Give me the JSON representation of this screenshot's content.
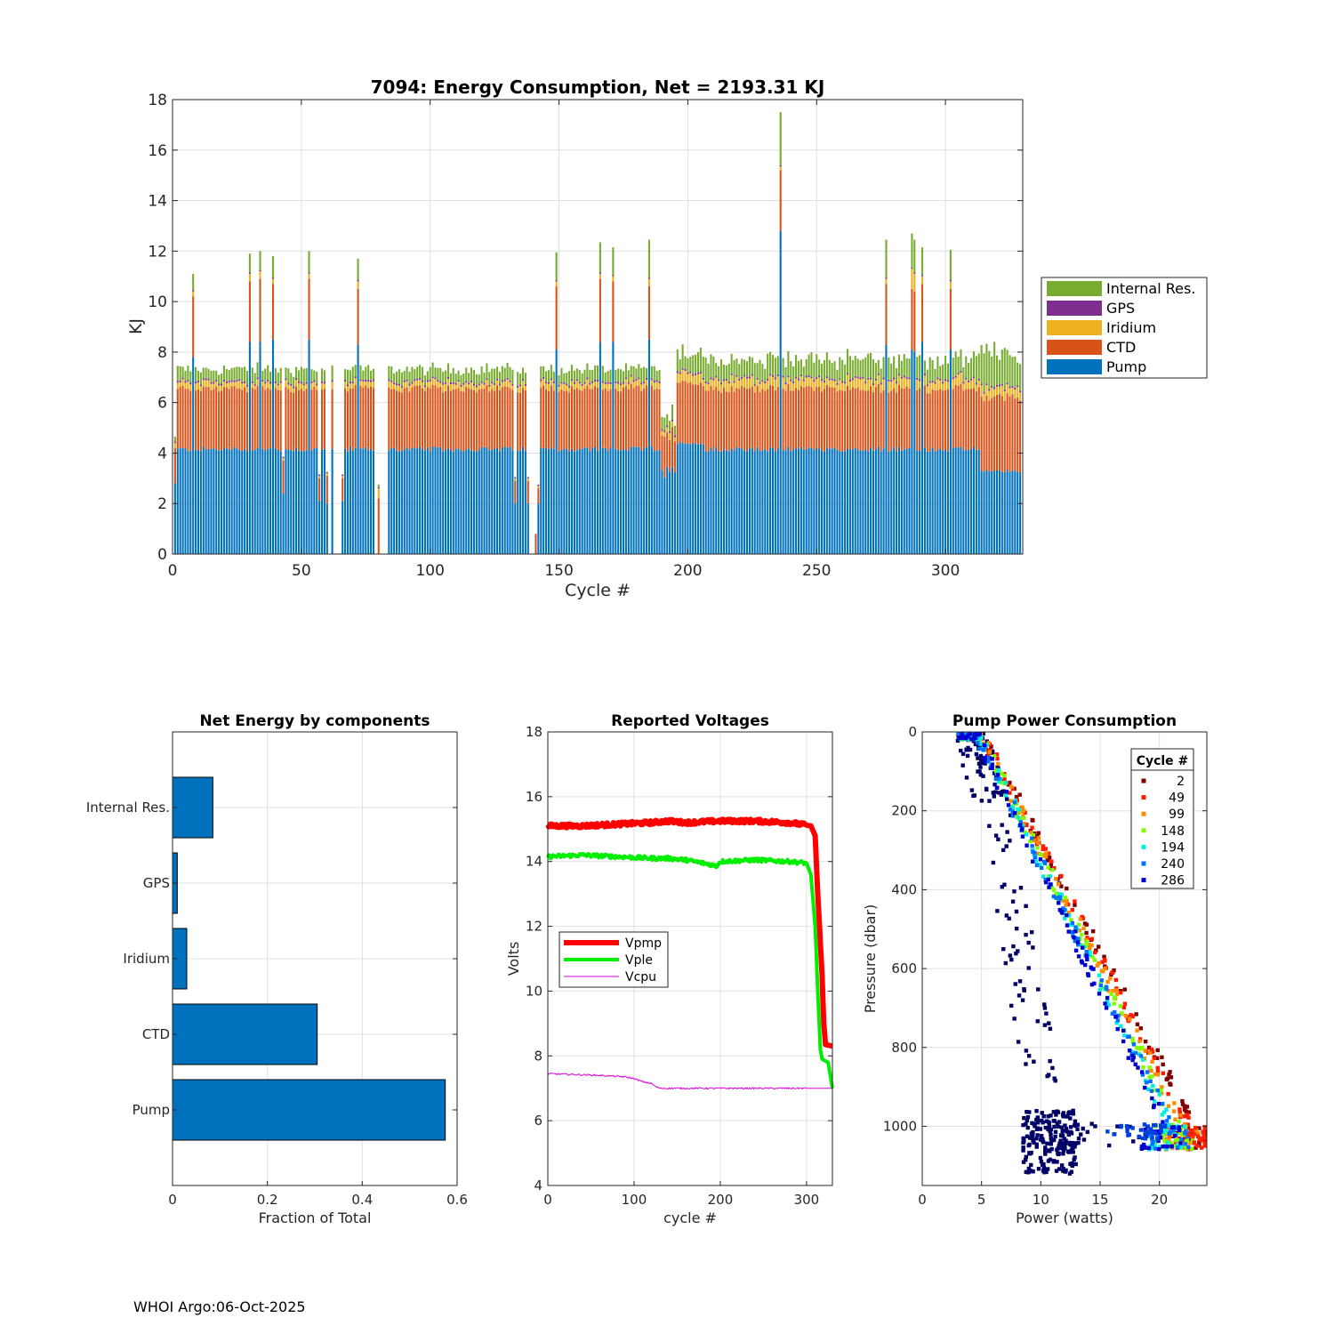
{
  "footer": "WHOI Argo:06-Oct-2025",
  "chart_data": [
    {
      "id": "energy",
      "type": "bar",
      "stacked": true,
      "title": "7094: Energy Consumption,  Net = 2193.31 KJ",
      "xlabel": "Cycle #",
      "ylabel": "KJ",
      "xlim": [
        0,
        330
      ],
      "ylim": [
        0,
        18
      ],
      "xticks": [
        0,
        50,
        100,
        150,
        200,
        250,
        300
      ],
      "yticks": [
        0,
        2,
        4,
        6,
        8,
        10,
        12,
        14,
        16,
        18
      ],
      "grid": true,
      "legend_position": "outside-right",
      "series": [
        {
          "name": "Internal Res.",
          "color": "#77ac30",
          "typical": 0.45
        },
        {
          "name": "GPS",
          "color": "#7e2f8e",
          "typical": 0.07
        },
        {
          "name": "Iridium",
          "color": "#edb120",
          "typical": 0.22
        },
        {
          "name": "CTD",
          "color": "#d95319",
          "typical": 2.3
        },
        {
          "name": "Pump",
          "color": "#0072bd",
          "typical": 4.1
        }
      ],
      "legend_order": [
        "Internal Res.",
        "GPS",
        "Iridium",
        "CTD",
        "Pump"
      ],
      "spikes": [
        {
          "cycle": 8,
          "pump": 7.8,
          "ctd": 2.4,
          "iridium": 0.2,
          "gps": 0.05,
          "res": 0.65
        },
        {
          "cycle": 30,
          "pump": 8.4,
          "ctd": 2.4,
          "iridium": 0.3,
          "gps": 0.05,
          "res": 0.75
        },
        {
          "cycle": 34,
          "pump": 8.4,
          "ctd": 2.5,
          "iridium": 0.3,
          "gps": 0.05,
          "res": 0.75
        },
        {
          "cycle": 39,
          "pump": 8.5,
          "ctd": 2.2,
          "iridium": 0.2,
          "gps": 0.05,
          "res": 0.85
        },
        {
          "cycle": 53,
          "pump": 8.5,
          "ctd": 2.4,
          "iridium": 0.2,
          "gps": 0.05,
          "res": 0.85
        },
        {
          "cycle": 72,
          "pump": 8.3,
          "ctd": 2.2,
          "iridium": 0.3,
          "gps": 0.05,
          "res": 0.85
        },
        {
          "cycle": 149,
          "pump": 8.1,
          "ctd": 2.5,
          "iridium": 0.2,
          "gps": 0.05,
          "res": 1.1
        },
        {
          "cycle": 166,
          "pump": 8.4,
          "ctd": 2.5,
          "iridium": 0.2,
          "gps": 0.05,
          "res": 1.2
        },
        {
          "cycle": 171,
          "pump": 8.4,
          "ctd": 2.4,
          "iridium": 0.2,
          "gps": 0.05,
          "res": 1.1
        },
        {
          "cycle": 185,
          "pump": 8.5,
          "ctd": 2.1,
          "iridium": 0.3,
          "gps": 0.05,
          "res": 1.5
        },
        {
          "cycle": 236,
          "pump": 12.8,
          "ctd": 2.4,
          "iridium": 0.15,
          "gps": 0.05,
          "res": 2.1
        },
        {
          "cycle": 277,
          "pump": 8.3,
          "ctd": 2.4,
          "iridium": 0.2,
          "gps": 0.05,
          "res": 1.5
        },
        {
          "cycle": 287,
          "pump": 8.1,
          "ctd": 2.4,
          "iridium": 0.8,
          "gps": 0.05,
          "res": 1.35
        },
        {
          "cycle": 288,
          "pump": 8.0,
          "ctd": 2.4,
          "iridium": 0.7,
          "gps": 0.05,
          "res": 1.3
        },
        {
          "cycle": 291,
          "pump": 8.4,
          "ctd": 2.3,
          "iridium": 0.3,
          "gps": 0.05,
          "res": 1.1
        },
        {
          "cycle": 302,
          "pump": 8.1,
          "ctd": 2.4,
          "iridium": 0.3,
          "gps": 0.05,
          "res": 1.2
        }
      ],
      "gaps": [
        61,
        63,
        64,
        65,
        79,
        81,
        82,
        83,
        139,
        140
      ],
      "low_cycles": [
        {
          "cycle": 1,
          "pump": 2.8,
          "ctd": 1.4,
          "iridium": 0.2,
          "gps": 0.05,
          "res": 0.2
        },
        {
          "cycle": 43,
          "pump": 2.4,
          "ctd": 1.3,
          "iridium": 0.1,
          "gps": 0.05,
          "res": 0.0
        },
        {
          "cycle": 57,
          "pump": 2.1,
          "ctd": 0.9,
          "iridium": 0.1,
          "gps": 0.05,
          "res": 0.0
        },
        {
          "cycle": 60,
          "pump": 2.0,
          "ctd": 1.1,
          "iridium": 0.1,
          "gps": 0.05,
          "res": 0.0
        },
        {
          "cycle": 66,
          "pump": 2.1,
          "ctd": 0.9,
          "iridium": 0.1,
          "gps": 0.05,
          "res": 0.0
        },
        {
          "cycle": 80,
          "pump": 0.0,
          "ctd": 2.2,
          "iridium": 0.4,
          "gps": 0.05,
          "res": 0.1
        },
        {
          "cycle": 133,
          "pump": 2.0,
          "ctd": 0.9,
          "iridium": 0.1,
          "gps": 0.05,
          "res": 0.0
        },
        {
          "cycle": 138,
          "pump": 2.0,
          "ctd": 0.9,
          "iridium": 0.1,
          "gps": 0.05,
          "res": 0.0
        },
        {
          "cycle": 141,
          "pump": 0.0,
          "ctd": 0.8,
          "iridium": 0.0,
          "gps": 0.0,
          "res": 0.0
        },
        {
          "cycle": 142,
          "pump": 2.0,
          "ctd": 0.6,
          "iridium": 0.1,
          "gps": 0.05,
          "res": 0.0
        }
      ]
    },
    {
      "id": "components",
      "type": "barh",
      "title": "Net Energy by components",
      "xlabel": "Fraction of Total",
      "xlim": [
        0,
        0.6
      ],
      "xticks": [
        0,
        0.2,
        0.4,
        0.6
      ],
      "xticklabels": [
        "0",
        "0.2",
        "0.4",
        "0.6"
      ],
      "categories": [
        "Internal Res.",
        "GPS",
        "Iridium",
        "CTD",
        "Pump"
      ],
      "values": [
        0.085,
        0.01,
        0.03,
        0.305,
        0.575
      ],
      "color": "#0072bd",
      "grid": true
    },
    {
      "id": "voltages",
      "type": "line",
      "title": "Reported Voltages",
      "xlabel": "cycle #",
      "ylabel": "Volts",
      "xlim": [
        0,
        330
      ],
      "ylim": [
        4,
        18
      ],
      "xticks": [
        0,
        100,
        200,
        300
      ],
      "yticks": [
        4,
        6,
        8,
        10,
        12,
        14,
        16,
        18
      ],
      "grid": true,
      "legend_position": "middle-left",
      "series": [
        {
          "name": "Vpmp",
          "color": "#ff0000",
          "x": [
            0,
            40,
            80,
            120,
            140,
            160,
            200,
            240,
            280,
            305,
            310,
            313,
            316,
            318,
            320,
            322,
            330
          ],
          "y": [
            15.1,
            15.1,
            15.15,
            15.2,
            15.25,
            15.2,
            15.25,
            15.25,
            15.2,
            15.1,
            14.8,
            13.0,
            11.5,
            10.5,
            9.0,
            8.35,
            8.3
          ]
        },
        {
          "name": "Vple",
          "color": "#00ee00",
          "x": [
            0,
            40,
            80,
            120,
            140,
            160,
            190,
            195,
            200,
            240,
            280,
            300,
            305,
            310,
            313,
            316,
            318,
            325,
            330
          ],
          "y": [
            14.15,
            14.2,
            14.15,
            14.1,
            14.1,
            14.05,
            13.9,
            13.85,
            14.0,
            14.05,
            14.0,
            13.95,
            13.6,
            12.0,
            10.0,
            8.2,
            7.9,
            7.8,
            7.0
          ]
        },
        {
          "name": "Vcpu",
          "color": "#dd00dd",
          "x": [
            0,
            60,
            90,
            100,
            110,
            120,
            125,
            130,
            150,
            200,
            260,
            320,
            330
          ],
          "y": [
            7.45,
            7.4,
            7.35,
            7.3,
            7.2,
            7.15,
            7.05,
            7.0,
            7.0,
            7.0,
            7.0,
            7.0,
            7.0
          ]
        }
      ]
    },
    {
      "id": "pump_power",
      "type": "scatter",
      "title": "Pump Power Consumption",
      "xlabel": "Power (watts)",
      "ylabel": "Pressure (dbar)",
      "xlim": [
        0,
        24
      ],
      "ylim": [
        1150,
        0
      ],
      "xticks": [
        0,
        5,
        10,
        15,
        20
      ],
      "yticks": [
        0,
        200,
        400,
        600,
        800,
        1000
      ],
      "grid": true,
      "legend_title": "Cycle #",
      "legend_position": "top-right",
      "series": [
        {
          "name": "2",
          "color": "#800000",
          "x_at_0": 5.0,
          "x_at_1000": 23.0
        },
        {
          "name": "49",
          "color": "#ff1a00",
          "x_at_0": 4.9,
          "x_at_1000": 22.5
        },
        {
          "name": "99",
          "color": "#ff8c00",
          "x_at_0": 4.8,
          "x_at_1000": 22.0
        },
        {
          "name": "148",
          "color": "#80ff00",
          "x_at_0": 4.7,
          "x_at_1000": 21.5
        },
        {
          "name": "194",
          "color": "#00f0e0",
          "x_at_0": 4.6,
          "x_at_1000": 21.0
        },
        {
          "name": "240",
          "color": "#0070ff",
          "x_at_0": 4.5,
          "x_at_1000": 21.0
        },
        {
          "name": "286",
          "color": "#0000d0",
          "x_at_0": 4.4,
          "x_at_1000": 20.5
        }
      ],
      "outlier_color": "#000066"
    }
  ]
}
